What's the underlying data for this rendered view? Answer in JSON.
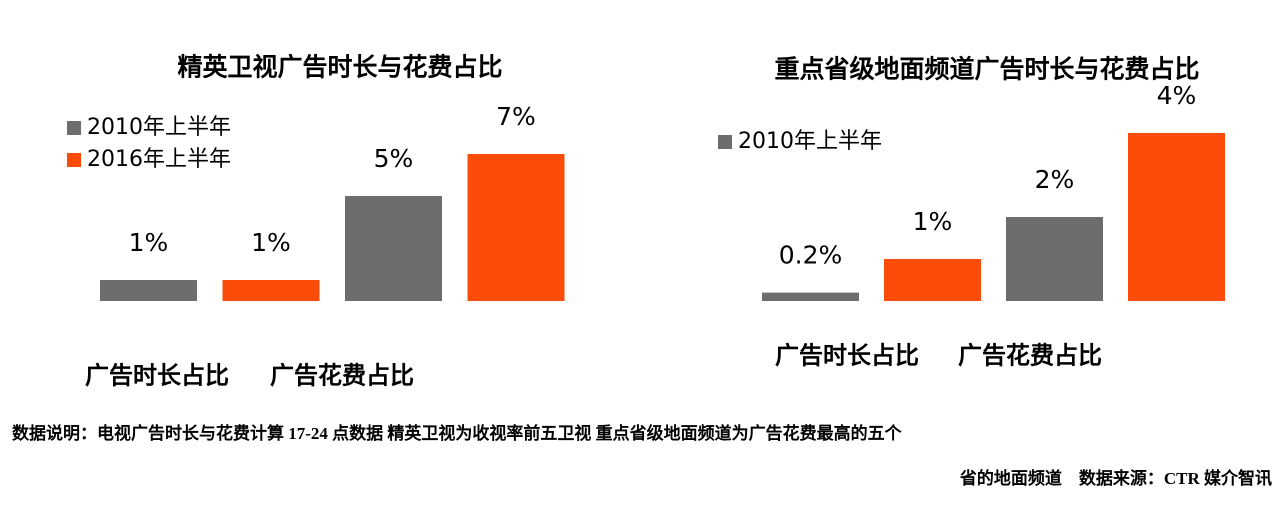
{
  "chart_data": [
    {
      "type": "bar",
      "title": "精英卫视广告时长与花费占比",
      "categories": [
        "广告时长占比",
        "广告花费占比"
      ],
      "series": [
        {
          "name": "2010年上半年",
          "color": "#6d6d6d",
          "values": [
            1,
            5
          ],
          "value_labels": [
            "1%",
            "5%"
          ]
        },
        {
          "name": "2016年上半年",
          "color": "#fc4c0a",
          "values": [
            1,
            7
          ],
          "value_labels": [
            "1%",
            "7%"
          ]
        }
      ]
    },
    {
      "type": "bar",
      "title": "重点省级地面频道广告时长与花费占比",
      "categories": [
        "广告时长占比",
        "广告花费占比"
      ],
      "series": [
        {
          "name": "2010年上半年",
          "color": "#6d6d6d",
          "values": [
            0.2,
            2
          ],
          "value_labels": [
            "0.2%",
            "2%"
          ]
        },
        {
          "color": "#fc4c0a",
          "values": [
            1,
            4
          ],
          "value_labels": [
            "1%",
            "4%"
          ]
        }
      ]
    }
  ],
  "footnote": [
    "数据说明：电视广告时长与花费计算 17-24 点数据 精英卫视为收视率前五卫视 重点省级地面频道为广告花费最高的五个",
    "省的地面频道　数据来源：CTR 媒介智讯"
  ]
}
